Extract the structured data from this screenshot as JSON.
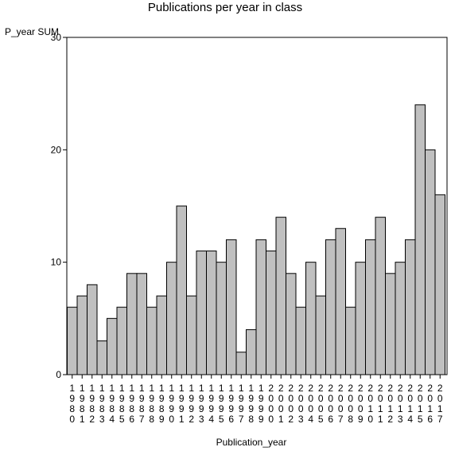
{
  "chart_data": {
    "type": "bar",
    "title": "Publications per year in class",
    "xlabel": "Publication_year",
    "ylabel": "P_year SUM",
    "ylim": [
      0,
      30
    ],
    "yticks": [
      0,
      10,
      20,
      30
    ],
    "categories": [
      "1980",
      "1981",
      "1982",
      "1983",
      "1984",
      "1985",
      "1986",
      "1987",
      "1988",
      "1989",
      "1990",
      "1991",
      "1992",
      "1993",
      "1994",
      "1995",
      "1996",
      "1997",
      "1998",
      "1999",
      "2000",
      "2001",
      "2002",
      "2003",
      "2004",
      "2005",
      "2006",
      "2007",
      "2008",
      "2009",
      "2010",
      "2011",
      "2012",
      "2013",
      "2014",
      "2015",
      "2016",
      "2017"
    ],
    "values": [
      6,
      7,
      8,
      3,
      5,
      6,
      9,
      9,
      6,
      7,
      10,
      15,
      7,
      11,
      11,
      10,
      12,
      2,
      4,
      12,
      11,
      14,
      9,
      6,
      10,
      7,
      12,
      13,
      6,
      10,
      12,
      14,
      9,
      10,
      12,
      24,
      20,
      16
    ],
    "bar_color": "#c0c0c0",
    "grid": false
  }
}
